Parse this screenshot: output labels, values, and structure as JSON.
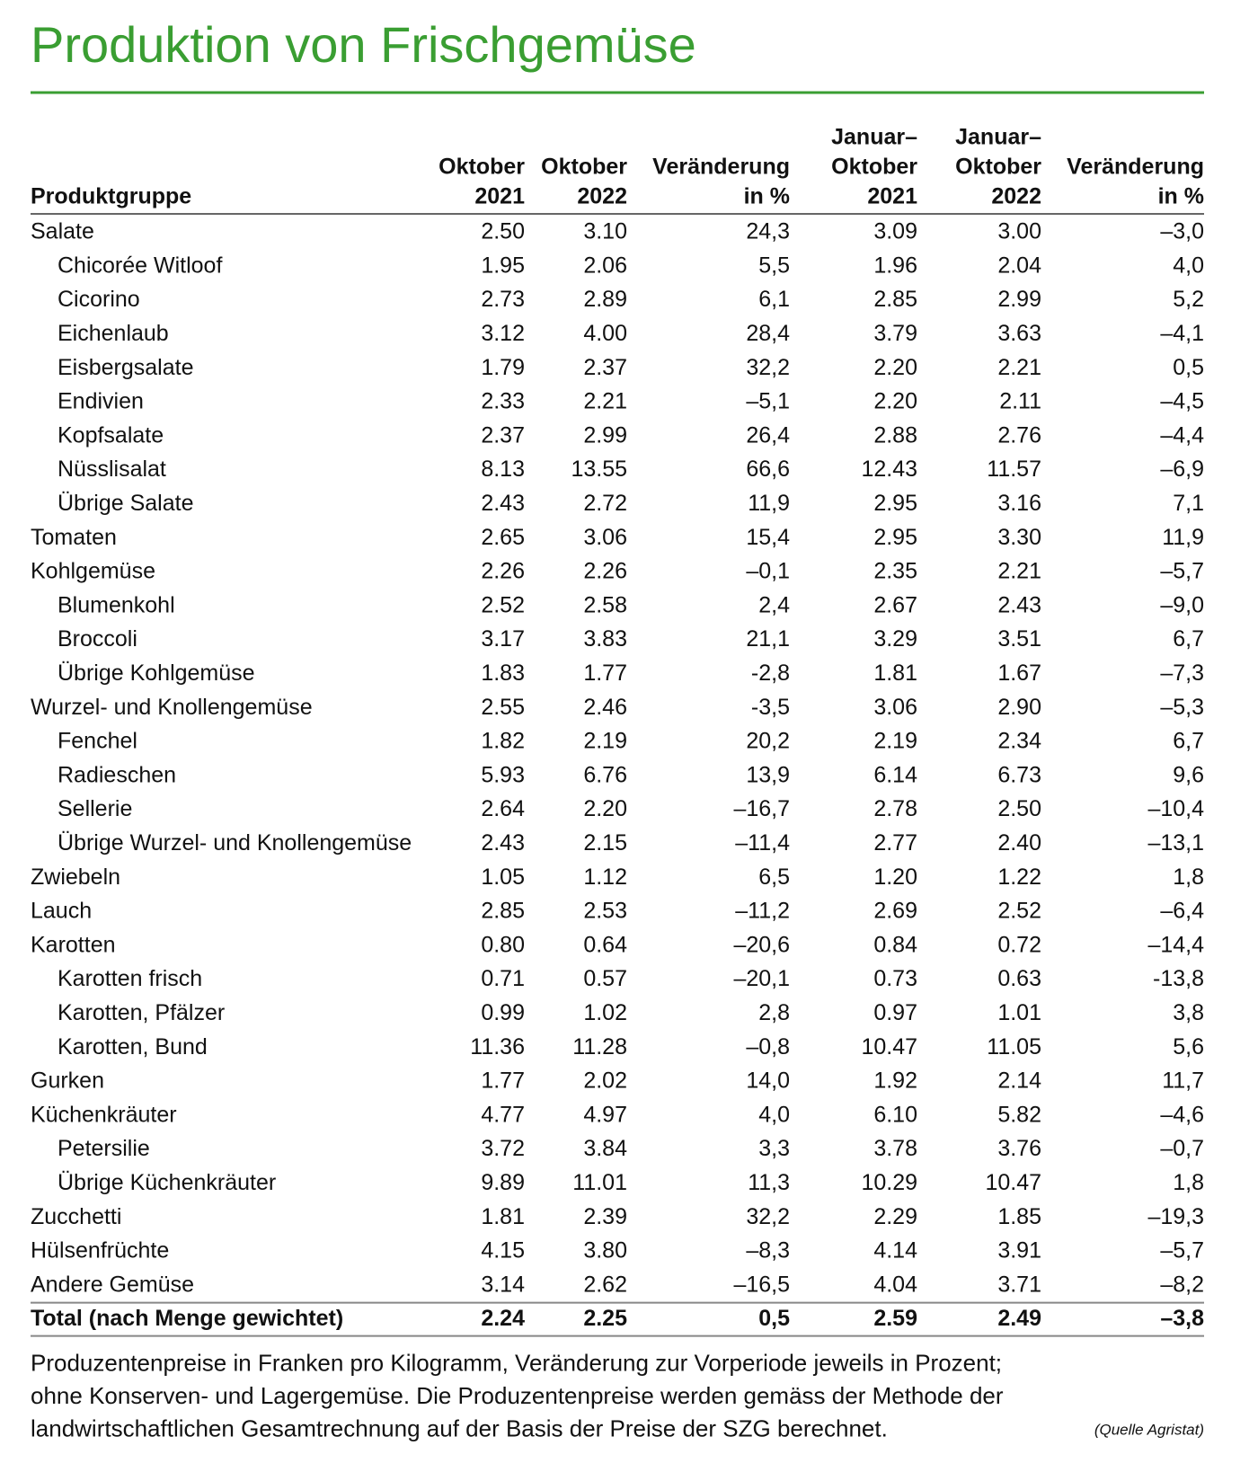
{
  "title": "Produktion von Frischgemüse",
  "table": {
    "header": [
      [
        "Produktgruppe"
      ],
      [
        "Oktober",
        "2021"
      ],
      [
        "Oktober",
        "2022"
      ],
      [
        "Veränderung",
        "in %"
      ],
      [
        "Januar–",
        "Oktober",
        "2021"
      ],
      [
        "Januar–",
        "Oktober",
        "2022"
      ],
      [
        "Veränderung",
        "in %"
      ]
    ],
    "groups": [
      {
        "row": [
          "Salate",
          "2.50",
          "3.10",
          "24,3",
          "3.09",
          "3.00",
          "–3,0"
        ],
        "children": [
          [
            "Chicorée Witloof",
            "1.95",
            "2.06",
            "5,5",
            "1.96",
            "2.04",
            "4,0"
          ],
          [
            "Cicorino",
            "2.73",
            "2.89",
            "6,1",
            "2.85",
            "2.99",
            "5,2"
          ],
          [
            "Eichenlaub",
            "3.12",
            "4.00",
            "28,4",
            "3.79",
            "3.63",
            "–4,1"
          ],
          [
            "Eisbergsalate",
            "1.79",
            "2.37",
            "32,2",
            "2.20",
            "2.21",
            "0,5"
          ],
          [
            "Endivien",
            "2.33",
            "2.21",
            "–5,1",
            "2.20",
            "2.11",
            "–4,5"
          ],
          [
            "Kopfsalate",
            "2.37",
            "2.99",
            "26,4",
            "2.88",
            "2.76",
            "–4,4"
          ],
          [
            "Nüsslisalat",
            "8.13",
            "13.55",
            "66,6",
            "12.43",
            "11.57",
            "–6,9"
          ],
          [
            "Übrige Salate",
            "2.43",
            "2.72",
            "11,9",
            "2.95",
            "3.16",
            "7,1"
          ]
        ]
      },
      {
        "row": [
          "Tomaten",
          "2.65",
          "3.06",
          "15,4",
          "2.95",
          "3.30",
          "11,9"
        ],
        "children": []
      },
      {
        "row": [
          "Kohlgemüse",
          "2.26",
          "2.26",
          "–0,1",
          "2.35",
          "2.21",
          "–5,7"
        ],
        "children": [
          [
            "Blumenkohl",
            "2.52",
            "2.58",
            "2,4",
            "2.67",
            "2.43",
            "–9,0"
          ],
          [
            "Broccoli",
            "3.17",
            "3.83",
            "21,1",
            "3.29",
            "3.51",
            "6,7"
          ],
          [
            "Übrige Kohlgemüse",
            "1.83",
            "1.77",
            "-2,8",
            "1.81",
            "1.67",
            "–7,3"
          ]
        ]
      },
      {
        "row": [
          "Wurzel- und Knollengemüse",
          "2.55",
          "2.46",
          "-3,5",
          "3.06",
          "2.90",
          "–5,3"
        ],
        "children": [
          [
            "Fenchel",
            "1.82",
            "2.19",
            "20,2",
            "2.19",
            "2.34",
            "6,7"
          ],
          [
            "Radieschen",
            "5.93",
            "6.76",
            "13,9",
            "6.14",
            "6.73",
            "9,6"
          ],
          [
            "Sellerie",
            "2.64",
            "2.20",
            "–16,7",
            "2.78",
            "2.50",
            "–10,4"
          ],
          [
            "Übrige Wurzel- und Knollengemüse",
            "2.43",
            "2.15",
            "–11,4",
            "2.77",
            "2.40",
            "–13,1"
          ]
        ]
      },
      {
        "row": [
          "Zwiebeln",
          "1.05",
          "1.12",
          "6,5",
          "1.20",
          "1.22",
          "1,8"
        ],
        "children": []
      },
      {
        "row": [
          "Lauch",
          "2.85",
          "2.53",
          "–11,2",
          "2.69",
          "2.52",
          "–6,4"
        ],
        "children": []
      },
      {
        "row": [
          "Karotten",
          "0.80",
          "0.64",
          "–20,6",
          "0.84",
          "0.72",
          "–14,4"
        ],
        "children": [
          [
            "Karotten frisch",
            "0.71",
            "0.57",
            "–20,1",
            "0.73",
            "0.63",
            "-13,8"
          ],
          [
            "Karotten, Pfälzer",
            "0.99",
            "1.02",
            "2,8",
            "0.97",
            "1.01",
            "3,8"
          ],
          [
            "Karotten, Bund",
            "11.36",
            "11.28",
            "–0,8",
            "10.47",
            "11.05",
            "5,6"
          ]
        ]
      },
      {
        "row": [
          "Gurken",
          "1.77",
          "2.02",
          "14,0",
          "1.92",
          "2.14",
          "11,7"
        ],
        "children": []
      },
      {
        "row": [
          "Küchenkräuter",
          "4.77",
          "4.97",
          "4,0",
          "6.10",
          "5.82",
          "–4,6"
        ],
        "children": [
          [
            "Petersilie",
            "3.72",
            "3.84",
            "3,3",
            "3.78",
            "3.76",
            "–0,7"
          ],
          [
            "Übrige Küchenkräuter",
            "9.89",
            "11.01",
            "11,3",
            "10.29",
            "10.47",
            "1,8"
          ]
        ]
      },
      {
        "row": [
          "Zucchetti",
          "1.81",
          "2.39",
          "32,2",
          "2.29",
          "1.85",
          "–19,3"
        ],
        "children": []
      },
      {
        "row": [
          "Hülsenfrüchte",
          "4.15",
          "3.80",
          "–8,3",
          "4.14",
          "3.91",
          "–5,7"
        ],
        "children": []
      },
      {
        "row": [
          "Andere Gemüse",
          "3.14",
          "2.62",
          "–16,5",
          "4.04",
          "3.71",
          "–8,2"
        ],
        "children": []
      }
    ],
    "total": [
      "Total (nach Menge gewichtet)",
      "2.24",
      "2.25",
      "0,5",
      "2.59",
      "2.49",
      "–3,8"
    ]
  },
  "footnote": [
    "Produzentenpreise in Franken pro Kilogramm, Veränderung zur Vorperiode jeweils in Prozent;",
    "ohne Konserven- und Lagergemüse. Die Produzentenpreise werden gemäss der Methode der",
    "landwirtschaftlichen Gesamtrechnung auf der Basis der Preise der SZG berechnet."
  ],
  "source": "(Quelle Agristat)"
}
